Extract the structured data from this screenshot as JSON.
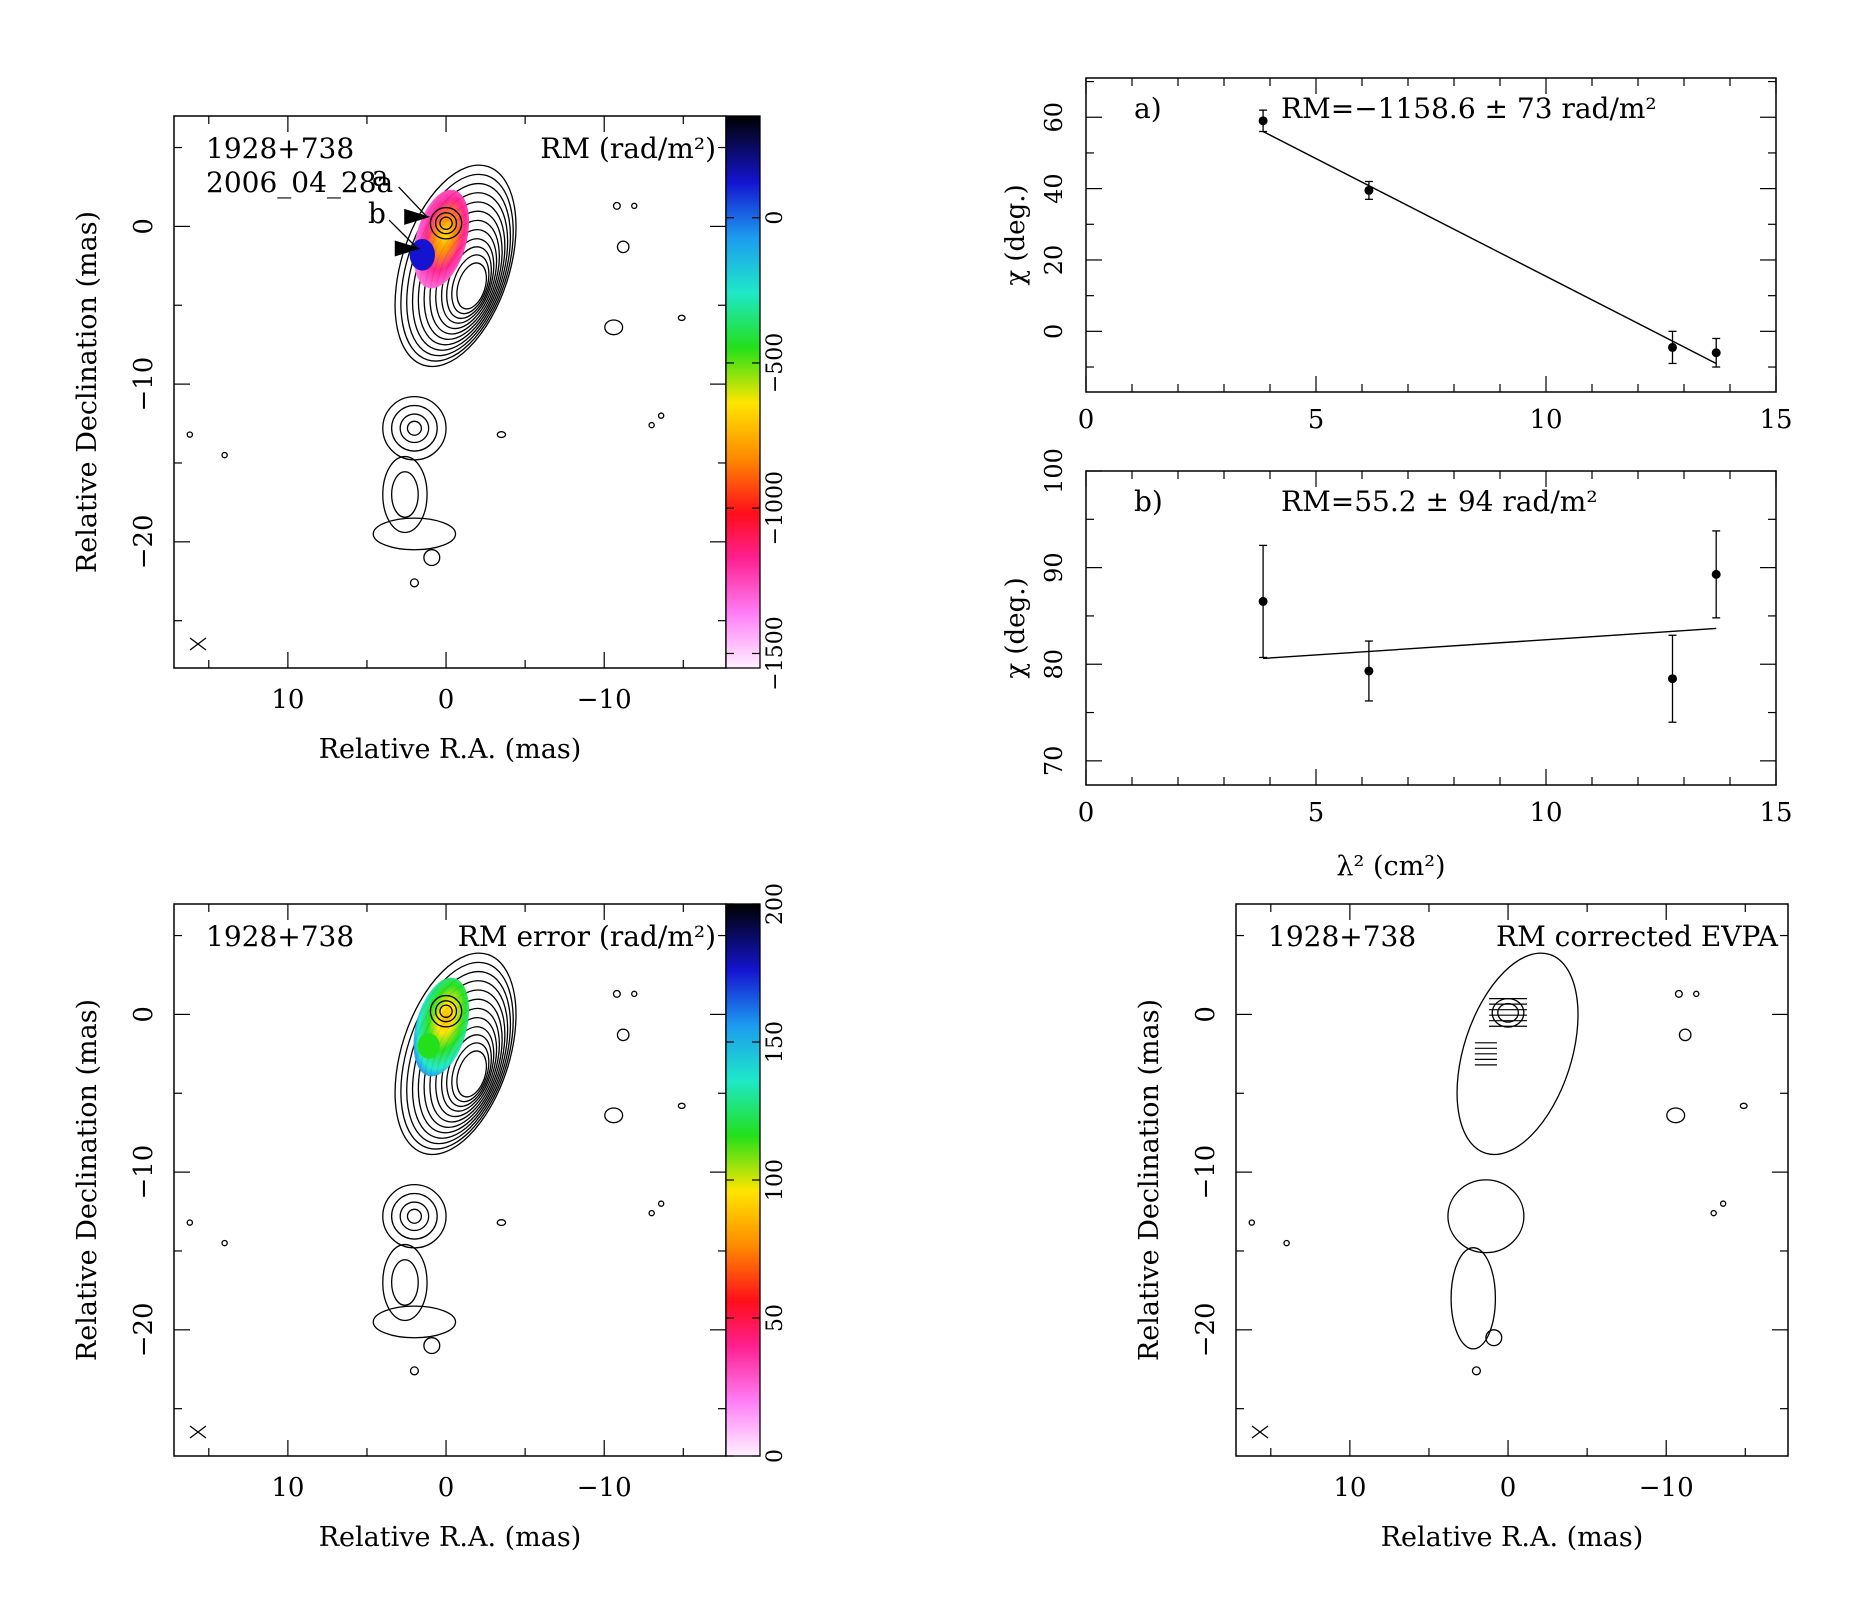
{
  "figure": {
    "source_name": "1928+738",
    "epoch": "2006_04_28a"
  },
  "maps": [
    {
      "id": "rm-map",
      "labels": [
        "1928+738",
        "2006_04_28a"
      ],
      "title": "RM (rad/m²)",
      "xlabel": "Relative R.A. (mas)",
      "ylabel": "Relative Declination (mas)",
      "x_ticks": [
        10,
        0,
        -10
      ],
      "y_ticks": [
        0,
        -10,
        -20
      ],
      "x_tick_labels": [
        "10",
        "0",
        "−10"
      ],
      "y_tick_labels": [
        "0",
        "−10",
        "−20"
      ],
      "xlim": [
        17.2,
        -17.7
      ],
      "ylim": [
        -28,
        7
      ],
      "region_markers": [
        "a",
        "b"
      ],
      "colorbar": {
        "range": [
          -1550,
          350
        ],
        "ticks": [
          0,
          -500,
          -1000,
          -1500
        ],
        "tick_labels": [
          "0",
          "−500",
          "−1000",
          "−1500"
        ],
        "palette": "rm"
      },
      "colored_core": "rm"
    },
    {
      "id": "rm-error-map",
      "labels": [
        "1928+738"
      ],
      "title": "RM error (rad/m²)",
      "xlabel": "Relative R.A. (mas)",
      "ylabel": "Relative Declination (mas)",
      "x_ticks": [
        10,
        0,
        -10
      ],
      "y_ticks": [
        0,
        -10,
        -20
      ],
      "x_tick_labels": [
        "10",
        "0",
        "−10"
      ],
      "y_tick_labels": [
        "0",
        "−10",
        "−20"
      ],
      "xlim": [
        17.2,
        -17.7
      ],
      "ylim": [
        -28,
        7
      ],
      "colorbar": {
        "range": [
          0,
          200
        ],
        "ticks": [
          0,
          50,
          100,
          150,
          200
        ],
        "tick_labels": [
          "0",
          "50",
          "100",
          "150",
          "200"
        ],
        "palette": "err"
      },
      "colored_core": "err"
    },
    {
      "id": "evpa-map",
      "labels": [
        "1928+738"
      ],
      "title": "RM corrected EVPA",
      "xlabel": "Relative R.A. (mas)",
      "ylabel": "Relative Declination (mas)",
      "x_ticks": [
        10,
        0,
        -10
      ],
      "y_ticks": [
        0,
        -10,
        -20
      ],
      "x_tick_labels": [
        "10",
        "0",
        "−10"
      ],
      "y_tick_labels": [
        "0",
        "−10",
        "−20"
      ],
      "xlim": [
        17.2,
        -17.7
      ],
      "ylim": [
        -28,
        7
      ]
    }
  ],
  "chart_data": [
    {
      "type": "scatter",
      "panel": "a)",
      "annotation": "RM=−1158.6 ± 73 rad/m²",
      "ylabel": "χ (deg.)",
      "xlim": [
        0,
        15
      ],
      "ylim": [
        -17,
        71
      ],
      "x_ticks": [
        0,
        5,
        10,
        15
      ],
      "y_ticks": [
        0,
        20,
        40,
        60
      ],
      "x_tick_labels": [
        "0",
        "5",
        "10",
        "15"
      ],
      "y_tick_labels": [
        "0",
        "20",
        "40",
        "60"
      ],
      "points": [
        {
          "x": 3.85,
          "y": 59.0,
          "err": 3.0
        },
        {
          "x": 6.15,
          "y": 39.5,
          "err": 2.5
        },
        {
          "x": 12.75,
          "y": -4.5,
          "err": 4.5
        },
        {
          "x": 13.7,
          "y": -6.0,
          "err": 4.0
        }
      ],
      "fit": {
        "x": [
          3.85,
          13.7
        ],
        "y": [
          56.0,
          -9.0
        ]
      }
    },
    {
      "type": "scatter",
      "panel": "b)",
      "annotation": "RM=55.2 ± 94 rad/m²",
      "ylabel": "χ (deg.)",
      "xlabel": "λ² (cm²)",
      "xlim": [
        0,
        15
      ],
      "ylim": [
        67.5,
        100
      ],
      "x_ticks": [
        0,
        5,
        10,
        15
      ],
      "y_ticks": [
        70,
        80,
        90,
        100
      ],
      "x_tick_labels": [
        "0",
        "5",
        "10",
        "15"
      ],
      "y_tick_labels": [
        "70",
        "80",
        "90",
        "100"
      ],
      "points": [
        {
          "x": 3.85,
          "y": 86.5,
          "err": 5.8
        },
        {
          "x": 6.15,
          "y": 79.3,
          "err": 3.1
        },
        {
          "x": 12.75,
          "y": 78.5,
          "err": 4.5
        },
        {
          "x": 13.7,
          "y": 89.3,
          "err": 4.5
        }
      ],
      "fit": {
        "x": [
          3.85,
          13.7
        ],
        "y": [
          80.6,
          83.7
        ]
      }
    }
  ]
}
